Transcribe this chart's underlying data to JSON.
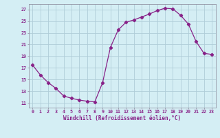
{
  "x": [
    0,
    1,
    2,
    3,
    4,
    5,
    6,
    7,
    8,
    9,
    10,
    11,
    12,
    13,
    14,
    15,
    16,
    17,
    18,
    19,
    20,
    21,
    22,
    23
  ],
  "y": [
    17.5,
    15.8,
    14.5,
    13.5,
    12.2,
    11.8,
    11.5,
    11.3,
    11.2,
    14.5,
    20.5,
    23.5,
    24.8,
    25.2,
    25.7,
    26.2,
    26.8,
    27.2,
    27.1,
    26.0,
    24.5,
    21.5,
    19.5,
    19.3
  ],
  "line_color": "#882288",
  "marker": "D",
  "marker_size": 2.2,
  "bg_color": "#d4eef4",
  "grid_color": "#b0cdd8",
  "xlabel": "Windchill (Refroidissement éolien,°C)",
  "ylabel_ticks": [
    11,
    13,
    15,
    17,
    19,
    21,
    23,
    25,
    27
  ],
  "xlim": [
    -0.5,
    23.5
  ],
  "ylim": [
    10.2,
    27.9
  ],
  "title": ""
}
